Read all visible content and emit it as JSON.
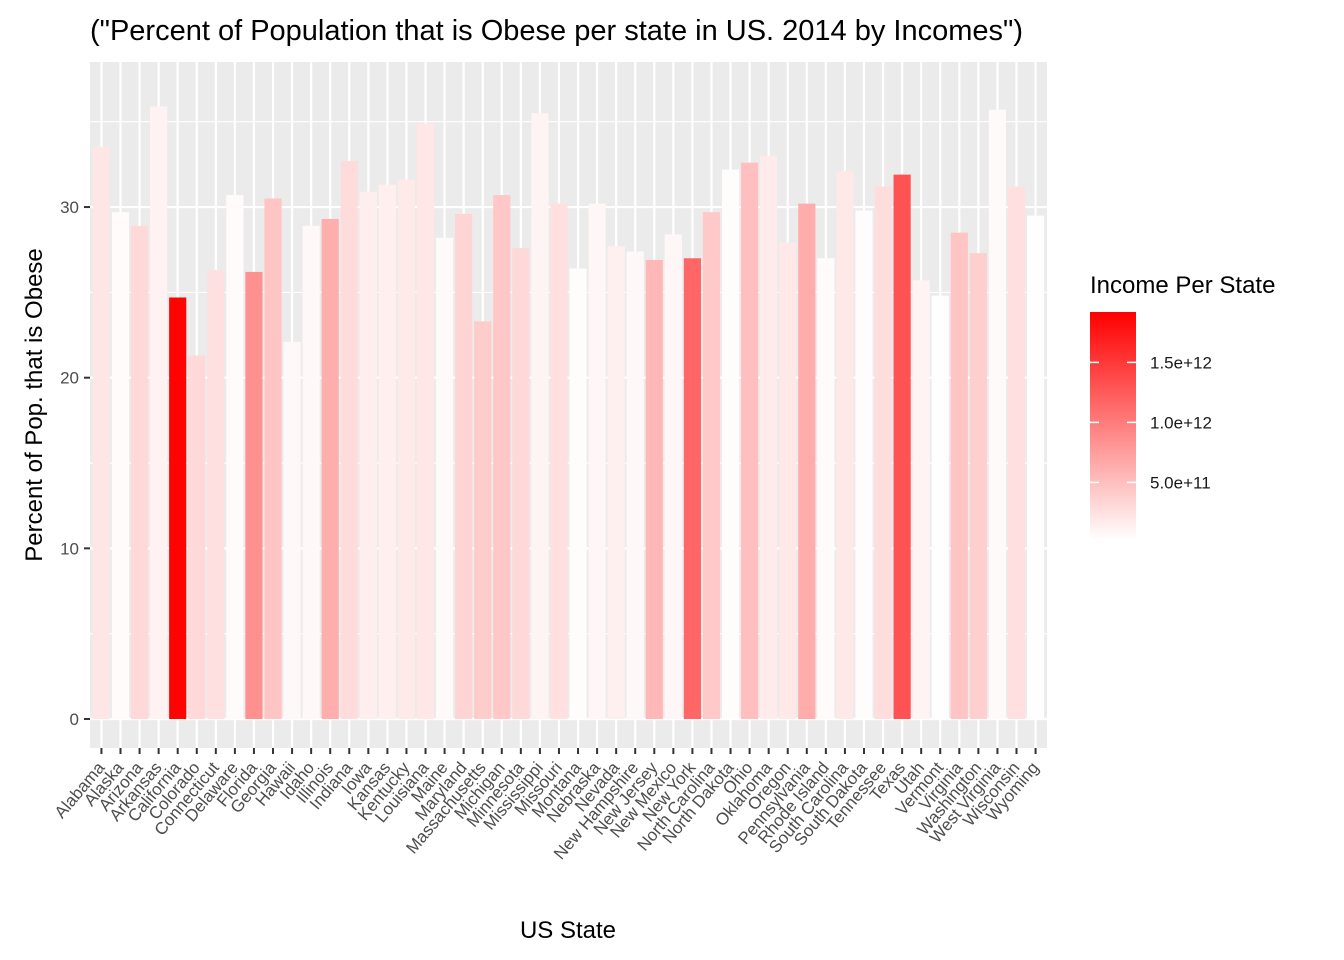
{
  "chart_data": {
    "type": "bar",
    "title": "(\"Percent of Population that is Obese per state in US. 2014 by Incomes\")",
    "xlabel": "US State",
    "ylabel": "Percent of Pop. that is Obese",
    "ylim": [
      -1.7,
      38.5
    ],
    "yticks": [
      0,
      10,
      20,
      30
    ],
    "ytick_labels": [
      "0",
      "10",
      "20",
      "30"
    ],
    "grid": true,
    "categories": [
      "Alabama",
      "Alaska",
      "Arizona",
      "Arkansas",
      "California",
      "Colorado",
      "Connecticut",
      "Delaware",
      "Florida",
      "Georgia",
      "Hawaii",
      "Idaho",
      "Illinois",
      "Indiana",
      "Iowa",
      "Kansas",
      "Kentucky",
      "Louisiana",
      "Maine",
      "Maryland",
      "Massachusetts",
      "Michigan",
      "Minnesota",
      "Mississippi",
      "Missouri",
      "Montana",
      "Nebraska",
      "Nevada",
      "New Hampshire",
      "New Jersey",
      "New Mexico",
      "New York",
      "North Carolina",
      "North Dakota",
      "Ohio",
      "Oklahoma",
      "Oregon",
      "Pennsylvania",
      "Rhode Island",
      "South Carolina",
      "South Dakota",
      "Tennessee",
      "Texas",
      "Utah",
      "Vermont",
      "Virginia",
      "Washington",
      "West Virginia",
      "Wisconsin",
      "Wyoming"
    ],
    "values": [
      33.5,
      29.7,
      28.9,
      35.9,
      24.7,
      21.3,
      26.3,
      30.7,
      26.2,
      30.5,
      22.1,
      28.9,
      29.3,
      32.7,
      30.9,
      31.3,
      31.6,
      34.9,
      28.2,
      29.6,
      23.3,
      30.7,
      27.6,
      35.5,
      30.2,
      26.4,
      30.2,
      27.7,
      27.4,
      26.9,
      28.4,
      27.0,
      29.7,
      32.2,
      32.6,
      33.0,
      27.9,
      30.2,
      27.0,
      32.1,
      29.8,
      31.2,
      31.9,
      25.7,
      24.8,
      28.5,
      27.3,
      35.7,
      31.2,
      29.5
    ],
    "color_values": [
      210000000000.0,
      50000000000.0,
      300000000000.0,
      120000000000.0,
      1900000000000.0,
      300000000000.0,
      250000000000.0,
      50000000000.0,
      850000000000.0,
      450000000000.0,
      70000000000.0,
      70000000000.0,
      620000000000.0,
      280000000000.0,
      150000000000.0,
      140000000000.0,
      180000000000.0,
      200000000000.0,
      60000000000.0,
      340000000000.0,
      400000000000.0,
      440000000000.0,
      300000000000.0,
      100000000000.0,
      260000000000.0,
      40000000000.0,
      90000000000.0,
      130000000000.0,
      70000000000.0,
      560000000000.0,
      80000000000.0,
      1150000000000.0,
      420000000000.0,
      40000000000.0,
      500000000000.0,
      170000000000.0,
      190000000000.0,
      640000000000.0,
      50000000000.0,
      190000000000.0,
      40000000000.0,
      270000000000.0,
      1300000000000.0,
      110000000000.0,
      30000000000.0,
      450000000000.0,
      380000000000.0,
      60000000000.0,
      260000000000.0,
      30000000000.0
    ],
    "legend": {
      "title": "Income Per State",
      "placement": "right",
      "breaks": [
        500000000000.0,
        1000000000000.0,
        1500000000000.0
      ],
      "labels": [
        "5.0e+11",
        "1.0e+12",
        "1.5e+12"
      ],
      "range": [
        20000000000.0,
        1920000000000.0
      ],
      "low_color": "#ffffff",
      "high_color": "#ff0000"
    },
    "panel_background": "#ebebeb",
    "grid_color": "#ffffff"
  }
}
